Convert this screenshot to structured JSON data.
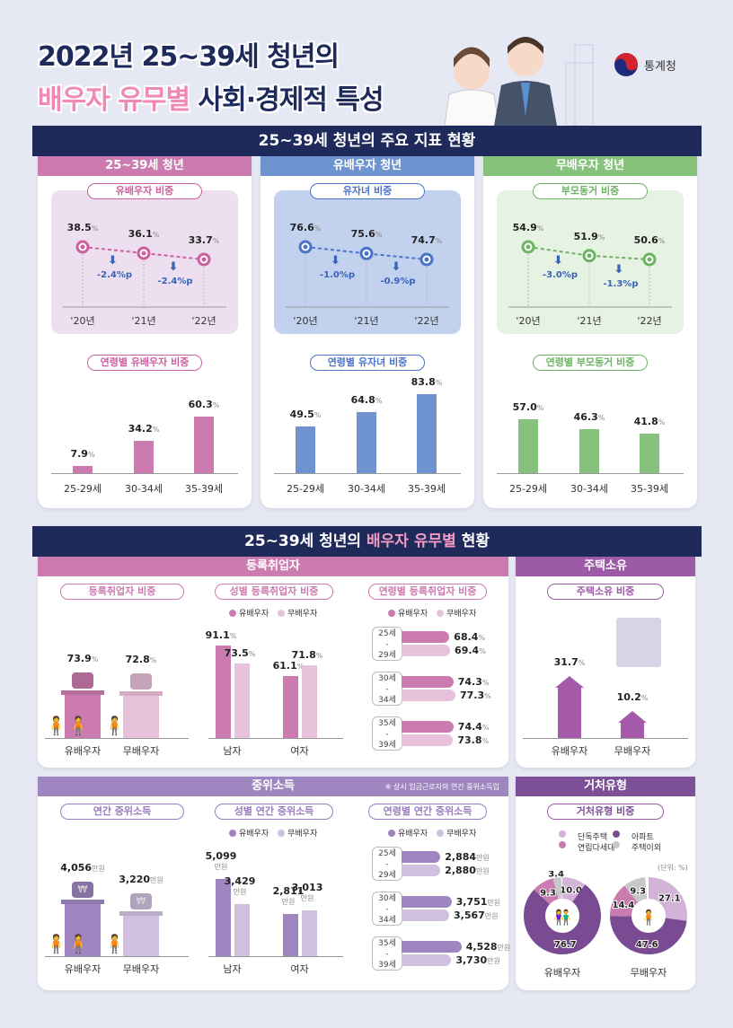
{
  "header": {
    "title_line1": "2022년 25~39세 청년의",
    "title_line2_highlight": "배우자 유무별",
    "title_line2_rest": "사회·경제적 특성",
    "org": "통계청"
  },
  "colors": {
    "navy": "#1d2a5a",
    "pink": "#cc7bb0",
    "pink_light": "#e8c1da",
    "blue": "#6f93cf",
    "green": "#86c27c",
    "purple": "#a086c0",
    "purple_light": "#cfc0e0",
    "purple_dark": "#7d4f96"
  },
  "section1": {
    "title": "25~39세 청년의 주요 지표 현황",
    "panels": [
      {
        "header": "25~39세 청년",
        "trend_title": "유배우자 비중",
        "years": [
          "'20년",
          "'21년",
          "'22년"
        ],
        "values": [
          38.5,
          36.1,
          33.7
        ],
        "labels": [
          "38.5",
          "36.1",
          "33.7"
        ],
        "changes": [
          "-2.4%p",
          "-2.4%p"
        ],
        "age_title": "연령별 유배우자 비중",
        "ages": [
          "25-29세",
          "30-34세",
          "35-39세"
        ],
        "age_values": [
          7.9,
          34.2,
          60.3
        ],
        "age_labels": [
          "7.9",
          "34.2",
          "60.3"
        ]
      },
      {
        "header": "유배우자 청년",
        "trend_title": "유자녀 비중",
        "years": [
          "'20년",
          "'21년",
          "'22년"
        ],
        "values": [
          76.6,
          75.6,
          74.7
        ],
        "labels": [
          "76.6",
          "75.6",
          "74.7"
        ],
        "changes": [
          "-1.0%p",
          "-0.9%p"
        ],
        "age_title": "연령별 유자녀 비중",
        "ages": [
          "25-29세",
          "30-34세",
          "35-39세"
        ],
        "age_values": [
          49.5,
          64.8,
          83.8
        ],
        "age_labels": [
          "49.5",
          "64.8",
          "83.8"
        ]
      },
      {
        "header": "무배우자 청년",
        "trend_title": "부모동거 비중",
        "years": [
          "'20년",
          "'21년",
          "'22년"
        ],
        "values": [
          54.9,
          51.9,
          50.6
        ],
        "labels": [
          "54.9",
          "51.9",
          "50.6"
        ],
        "changes": [
          "-3.0%p",
          "-1.3%p"
        ],
        "age_title": "연령별 부모동거 비중",
        "ages": [
          "25-29세",
          "30-34세",
          "35-39세"
        ],
        "age_values": [
          57.0,
          46.3,
          41.8
        ],
        "age_labels": [
          "57.0",
          "46.3",
          "41.8"
        ]
      }
    ],
    "pct": "%"
  },
  "section2": {
    "title_pre": "25~39세 청년의",
    "title_highlight": "배우자 유무별",
    "title_post": "현황",
    "legend": [
      "유배우자",
      "무배우자"
    ],
    "groups": [
      "유배우자",
      "무배우자"
    ],
    "genders": [
      "남자",
      "여자"
    ],
    "age_groups": [
      [
        "25세",
        "-",
        "29세"
      ],
      [
        "30세",
        "-",
        "34세"
      ],
      [
        "35세",
        "-",
        "39세"
      ]
    ],
    "employment": {
      "header": "등록취업자",
      "overall_title": "등록취업자 비중",
      "overall_values": [
        73.9,
        72.8
      ],
      "overall_labels": [
        "73.9",
        "72.8"
      ],
      "gender_title": "성별 등록취업자 비중",
      "gender_values": [
        [
          91.1,
          73.5
        ],
        [
          61.1,
          71.8
        ]
      ],
      "gender_labels": [
        [
          "91.1",
          "73.5"
        ],
        [
          "61.1",
          "71.8"
        ]
      ],
      "age_title": "연령별 등록취업자 비중",
      "age_values": [
        [
          68.4,
          69.4
        ],
        [
          74.3,
          77.3
        ],
        [
          74.4,
          73.8
        ]
      ],
      "age_labels": [
        [
          "68.4",
          "69.4"
        ],
        [
          "74.3",
          "77.3"
        ],
        [
          "74.4",
          "73.8"
        ]
      ],
      "unit": "%"
    },
    "housing": {
      "header": "주택소유",
      "title": "주택소유 비중",
      "values": [
        31.7,
        10.2
      ],
      "labels": [
        "31.7",
        "10.2"
      ],
      "unit": "%"
    },
    "income": {
      "header": "중위소득",
      "note": "※ 상시 임금근로자의 연간 중위소득임",
      "overall_title": "연간 중위소득",
      "overall_values": [
        4056,
        3220
      ],
      "overall_labels": [
        "4,056",
        "3,220"
      ],
      "gender_title": "성별 연간 중위소득",
      "gender_values": [
        [
          5099,
          3429
        ],
        [
          2811,
          3013
        ]
      ],
      "gender_labels": [
        [
          "5,099",
          "3,429"
        ],
        [
          "2,811",
          "3,013"
        ]
      ],
      "age_title": "연령별 연간 중위소득",
      "age_values": [
        [
          2884,
          2880
        ],
        [
          3751,
          3567
        ],
        [
          4528,
          3730
        ]
      ],
      "age_labels": [
        [
          "2,884",
          "2,880"
        ],
        [
          "3,751",
          "3,567"
        ],
        [
          "4,528",
          "3,730"
        ]
      ],
      "unit": "만원"
    },
    "residence": {
      "header": "거처유형",
      "title": "거처유형 비중",
      "unit_note": "(단위: %)",
      "legend": [
        "단독주택",
        "아파트",
        "연립다세대",
        "주택이외"
      ],
      "legend_colors": [
        "#d3b3d8",
        "#7a4b93",
        "#cc7bb0",
        "#c8c8c8"
      ],
      "married": {
        "label": "유배우자",
        "values": [
          10.0,
          76.7,
          9.3,
          3.4
        ],
        "labels": [
          "10.0",
          "76.7",
          "9.3",
          "3.4"
        ]
      },
      "single": {
        "label": "무배우자",
        "values": [
          27.1,
          47.6,
          14.4,
          9.3
        ],
        "labels": [
          "27.1",
          "47.6",
          "14.4",
          "9.3"
        ]
      }
    }
  }
}
